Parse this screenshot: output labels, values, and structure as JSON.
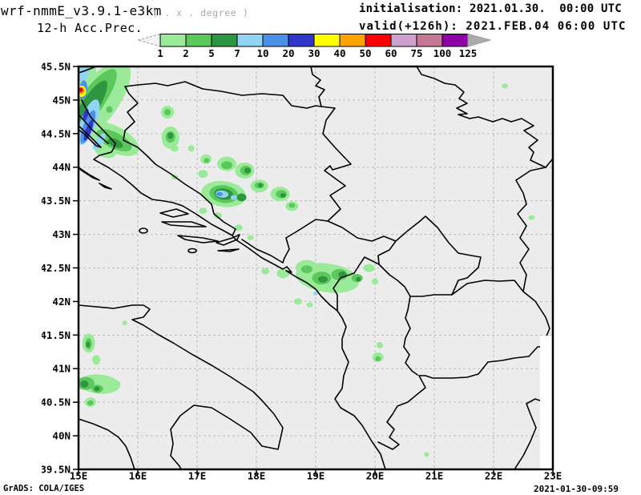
{
  "header": {
    "title": "wrf-nmmE_v3.9.1-e3km",
    "subtitle": "( . x . degree )",
    "product": "12-h Acc.Prec.",
    "init_line": "initialisation: 2021.01.30.  00:00 UTC",
    "valid_line": "valid(+126h): 2021.FEB.04 06:00 UTC"
  },
  "footer": {
    "left": "GrADS: COLA/IGES",
    "right": "2021-01-30-09:59"
  },
  "chart_data": {
    "type": "heatmap",
    "title": "12-h Acc.Prec.",
    "model": "wrf-nmmE_v3.9.1-e3km",
    "initialisation": "2021.01.30. 00:00 UTC",
    "valid": "2021.FEB.04 06:00 UTC (+126h)",
    "lon_range": [
      15,
      23
    ],
    "lat_range": [
      39.5,
      45.5
    ],
    "lat_ticks": [
      "45.5N",
      "45N",
      "44.5N",
      "44N",
      "43.5N",
      "43N",
      "42.5N",
      "42N",
      "41.5N",
      "41N",
      "40.5N",
      "40N",
      "39.5N"
    ],
    "lon_ticks": [
      "15E",
      "16E",
      "17E",
      "18E",
      "19E",
      "20E",
      "21E",
      "22E",
      "23E"
    ],
    "grid": "dashed, 0.5 deg lat / 1 deg lon",
    "background_color": "#ececec",
    "legend": {
      "position": "top",
      "levels": [
        "1",
        "2",
        "5",
        "7",
        "10",
        "20",
        "30",
        "40",
        "50",
        "60",
        "75",
        "100",
        "125"
      ],
      "colors": [
        "#9aea9a",
        "#5ac85a",
        "#2e9640",
        "#93d3f3",
        "#4a90e8",
        "#3236c8",
        "#ffff00",
        "#ffa400",
        "#fa0000",
        "#cda0cd",
        "#c57895",
        "#8f00a8"
      ],
      "underflow_arrow_color": "#f2f2f2",
      "overflow_arrow_color": "#ababab"
    },
    "palette": {
      "1": "#9aea9a",
      "2": "#5ac85a",
      "5": "#2e9640",
      "7": "#93d3f3",
      "10": "#4a90e8",
      "20": "#3236c8",
      "30": "#ffff00",
      "40": "#ffa400",
      "50": "#fa0000",
      "60": "#cda0cd",
      "75": "#c57895",
      "100": "#8f00a8"
    },
    "cells_format": [
      "lon",
      "lat",
      "rx_px",
      "ry_px",
      "rotation_deg",
      "level_mm"
    ],
    "cells": [
      [
        15.28,
        44.95,
        26,
        64,
        38,
        1
      ],
      [
        15.6,
        44.42,
        34,
        16,
        28,
        1
      ],
      [
        15.1,
        45.42,
        15,
        17,
        0,
        1
      ],
      [
        15.45,
        44.25,
        14,
        9,
        20,
        1
      ],
      [
        16.5,
        44.82,
        8,
        8,
        0,
        1
      ],
      [
        16.55,
        44.44,
        11,
        14,
        0,
        1
      ],
      [
        16.62,
        44.28,
        5,
        4,
        0,
        1
      ],
      [
        16.9,
        44.28,
        4,
        4,
        0,
        1
      ],
      [
        17.15,
        44.12,
        7,
        6,
        0,
        1
      ],
      [
        17.5,
        44.05,
        12,
        9,
        0,
        1
      ],
      [
        17.8,
        43.95,
        12,
        10,
        0,
        1
      ],
      [
        17.1,
        43.9,
        6,
        5,
        0,
        1
      ],
      [
        16.62,
        43.85,
        4,
        3,
        0,
        1
      ],
      [
        17.45,
        43.6,
        28,
        16,
        8,
        1
      ],
      [
        18.05,
        43.72,
        11,
        8,
        0,
        1
      ],
      [
        18.4,
        43.6,
        12,
        9,
        0,
        1
      ],
      [
        18.6,
        43.42,
        8,
        6,
        0,
        1
      ],
      [
        17.1,
        43.35,
        5,
        4,
        0,
        1
      ],
      [
        17.35,
        43.28,
        5,
        4,
        0,
        1
      ],
      [
        17.7,
        43.1,
        5,
        4,
        0,
        1
      ],
      [
        17.9,
        42.95,
        4,
        3,
        0,
        1
      ],
      [
        19.2,
        42.35,
        40,
        18,
        8,
        1
      ],
      [
        18.85,
        42.5,
        14,
        10,
        0,
        1
      ],
      [
        18.45,
        42.42,
        8,
        6,
        0,
        1
      ],
      [
        18.15,
        42.45,
        5,
        4,
        0,
        1
      ],
      [
        19.9,
        42.5,
        7,
        5,
        0,
        1
      ],
      [
        20.0,
        42.3,
        4,
        4,
        0,
        1
      ],
      [
        18.7,
        42.0,
        5,
        4,
        0,
        1
      ],
      [
        18.9,
        41.95,
        4,
        3,
        0,
        1
      ],
      [
        20.05,
        41.17,
        7,
        6,
        0,
        1
      ],
      [
        20.08,
        41.35,
        4,
        4,
        0,
        1
      ],
      [
        15.78,
        41.68,
        3,
        3,
        0,
        1
      ],
      [
        15.17,
        41.38,
        8,
        12,
        0,
        1
      ],
      [
        15.3,
        41.13,
        5,
        6,
        0,
        1
      ],
      [
        15.35,
        40.77,
        26,
        12,
        5,
        1
      ],
      [
        15.6,
        40.77,
        8,
        5,
        0,
        1
      ],
      [
        15.2,
        40.5,
        7,
        6,
        0,
        1
      ],
      [
        22.19,
        45.21,
        4,
        3,
        0,
        1
      ],
      [
        22.64,
        43.25,
        4,
        3,
        0,
        1
      ],
      [
        20.87,
        39.72,
        3,
        3,
        0,
        1
      ],
      [
        15.2,
        44.95,
        15,
        52,
        36,
        2
      ],
      [
        15.6,
        44.4,
        24,
        10,
        26,
        2
      ],
      [
        15.52,
        44.86,
        4,
        4,
        0,
        2
      ],
      [
        16.5,
        44.82,
        4,
        4,
        0,
        2
      ],
      [
        16.55,
        44.45,
        6,
        7,
        0,
        2
      ],
      [
        17.5,
        44.03,
        7,
        5,
        0,
        2
      ],
      [
        17.82,
        43.95,
        7,
        6,
        0,
        2
      ],
      [
        17.16,
        44.1,
        3.5,
        3,
        0,
        2
      ],
      [
        17.45,
        43.6,
        18,
        11,
        8,
        2
      ],
      [
        18.05,
        43.73,
        6,
        4,
        0,
        2
      ],
      [
        18.42,
        43.6,
        7,
        5,
        0,
        2
      ],
      [
        18.6,
        43.43,
        4,
        3,
        0,
        2
      ],
      [
        19.1,
        42.35,
        12,
        8,
        0,
        2
      ],
      [
        19.4,
        42.4,
        10,
        7,
        0,
        2
      ],
      [
        19.7,
        42.35,
        7,
        5,
        0,
        2
      ],
      [
        18.85,
        42.48,
        7,
        5,
        0,
        2
      ],
      [
        20.05,
        41.15,
        3.5,
        3,
        0,
        2
      ],
      [
        15.17,
        41.37,
        4,
        7,
        0,
        2
      ],
      [
        15.12,
        40.78,
        11,
        8,
        0,
        2
      ],
      [
        15.32,
        40.7,
        7,
        5,
        0,
        2
      ],
      [
        15.2,
        40.49,
        4,
        3,
        0,
        2
      ],
      [
        15.16,
        44.86,
        11,
        42,
        32,
        5
      ],
      [
        15.62,
        44.36,
        10,
        5,
        25,
        5
      ],
      [
        16.55,
        44.47,
        3.5,
        4,
        0,
        5
      ],
      [
        17.85,
        43.95,
        4,
        3.5,
        0,
        5
      ],
      [
        17.45,
        43.6,
        12,
        7,
        8,
        5
      ],
      [
        17.75,
        43.55,
        6,
        5,
        0,
        5
      ],
      [
        18.45,
        43.58,
        3.5,
        3,
        0,
        5
      ],
      [
        18.07,
        43.73,
        3,
        2.5,
        0,
        5
      ],
      [
        19.12,
        42.33,
        6,
        4,
        0,
        5
      ],
      [
        19.45,
        42.4,
        5,
        4,
        0,
        5
      ],
      [
        19.72,
        42.33,
        3,
        3,
        0,
        5
      ],
      [
        15.16,
        41.36,
        2.5,
        3.5,
        0,
        5
      ],
      [
        15.1,
        40.77,
        5,
        4.5,
        0,
        5
      ],
      [
        15.31,
        40.7,
        3.5,
        3,
        0,
        5
      ],
      [
        15.17,
        44.67,
        10,
        30,
        20,
        7
      ],
      [
        15.35,
        44.38,
        5,
        12,
        35,
        7
      ],
      [
        15.08,
        45.43,
        7,
        14,
        5,
        7
      ],
      [
        17.42,
        43.6,
        8,
        4.5,
        5,
        7
      ],
      [
        17.62,
        43.55,
        4,
        3,
        0,
        7
      ],
      [
        19.0,
        42.12,
        3,
        2.5,
        0,
        7
      ],
      [
        15.16,
        44.6,
        6,
        22,
        20,
        10
      ],
      [
        15.08,
        45.15,
        5,
        12,
        5,
        10
      ],
      [
        17.38,
        43.6,
        4,
        2.5,
        0,
        10
      ],
      [
        15.17,
        44.55,
        3.5,
        14,
        20,
        20
      ],
      [
        15.12,
        44.78,
        3,
        8,
        15,
        20
      ],
      [
        15.05,
        45.13,
        6,
        7,
        0,
        30
      ],
      [
        15.045,
        45.14,
        4,
        4.5,
        0,
        40
      ],
      [
        15.04,
        45.15,
        2.5,
        3,
        0,
        50
      ]
    ]
  }
}
